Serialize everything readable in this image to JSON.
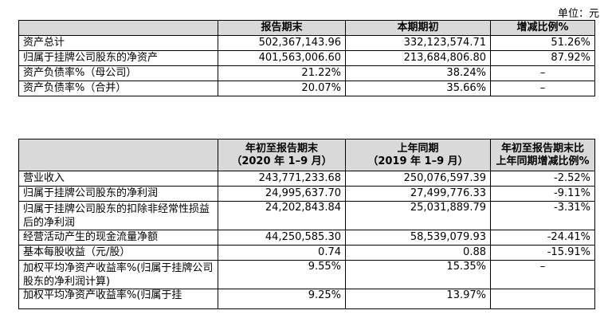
{
  "unit_label": "单位：元",
  "balance_table": {
    "headers": [
      "",
      "报告期末",
      "本期期初",
      "增减比例%"
    ],
    "rows": [
      {
        "label": "资产总计",
        "end": "502,367,143.96",
        "begin": "332,123,574.71",
        "change": "51.26%"
      },
      {
        "label": "归属于挂牌公司股东的净资产",
        "end": "401,563,006.60",
        "begin": "213,684,806.80",
        "change": "87.92%"
      },
      {
        "label": "资产负债率%（母公司）",
        "end": "21.22%",
        "begin": "38.24%",
        "change": "–"
      },
      {
        "label": "资产负债率%（合并）",
        "end": "20.07%",
        "begin": "35.66%",
        "change": "–"
      }
    ]
  },
  "income_table": {
    "headers": {
      "col1_line1": "年初至报告期末",
      "col1_line2": "（2020 年 1–9 月）",
      "col2_line1": "上年同期",
      "col2_line2": "（2019 年 1–9 月）",
      "col3_line1": "年初至报告期末比",
      "col3_line2": "上年同期增减比例%"
    },
    "rows": [
      {
        "label": "营业收入",
        "current": "243,771,233.68",
        "prior": "250,076,597.39",
        "change": "-2.52%"
      },
      {
        "label": "归属于挂牌公司股东的净利润",
        "current": "24,995,637.70",
        "prior": "27,499,776.33",
        "change": "-9.11%"
      },
      {
        "label": "归属于挂牌公司股东的扣除非经常性损益后的净利润",
        "current": "24,202,843.84",
        "prior": "25,031,889.79",
        "change": "-3.31%"
      },
      {
        "label": "经营活动产生的现金流量净额",
        "current": "44,250,585.30",
        "prior": "58,539,079.93",
        "change": "-24.41%"
      },
      {
        "label": "基本每股收益（元/股）",
        "current": "0.74",
        "prior": "0.88",
        "change": "-15.91%"
      },
      {
        "label": "加权平均净资产收益率%(归属于挂牌公司股东的净利润计算)",
        "current": "9.55%",
        "prior": "15.35%",
        "change": "–"
      },
      {
        "label": "加权平均净资产收益率%(归属于挂",
        "current": "9.25%",
        "prior": "13.97%",
        "change": ""
      }
    ]
  }
}
